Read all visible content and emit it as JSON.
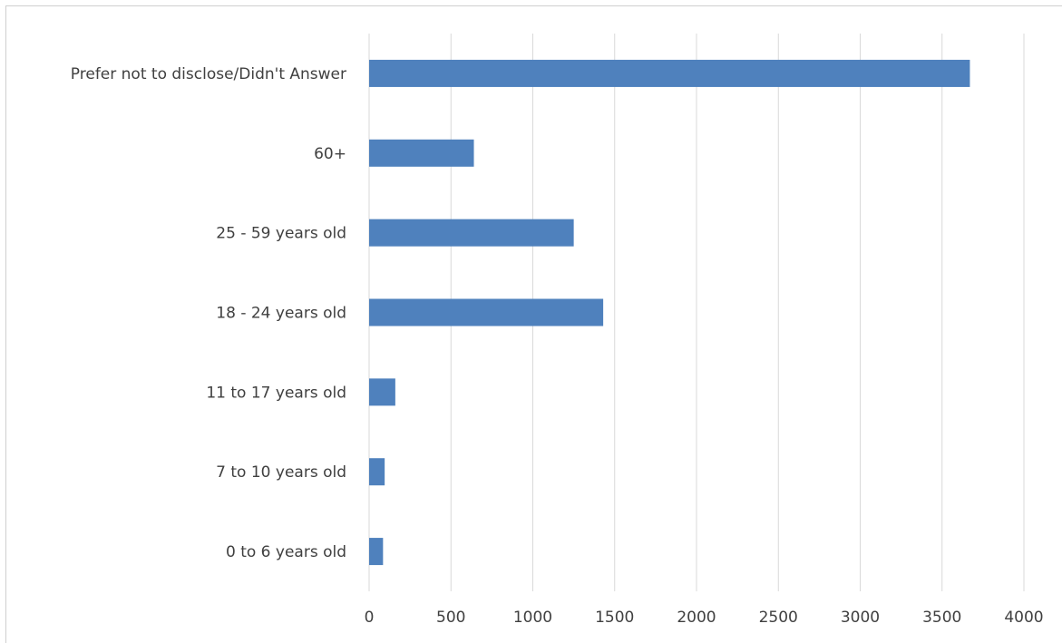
{
  "chart_data": {
    "type": "bar",
    "orientation": "horizontal",
    "title": "",
    "xlabel": "",
    "ylabel": "",
    "categories": [
      "0 to 6 years old",
      "7 to 10 years old",
      "11 to 17 years old",
      "18 - 24 years old",
      "25 - 59 years old",
      "60+",
      "Prefer not to disclose/Didn't Answer"
    ],
    "values": [
      85,
      95,
      160,
      1430,
      1250,
      640,
      3670
    ],
    "xlim": [
      0,
      4000
    ],
    "xticks": [
      "0",
      "500",
      "1000",
      "1500",
      "2000",
      "2500",
      "3000",
      "3500",
      "4000"
    ],
    "grid": "vertical",
    "legend": "none",
    "bar_color": "#4f81bd"
  }
}
